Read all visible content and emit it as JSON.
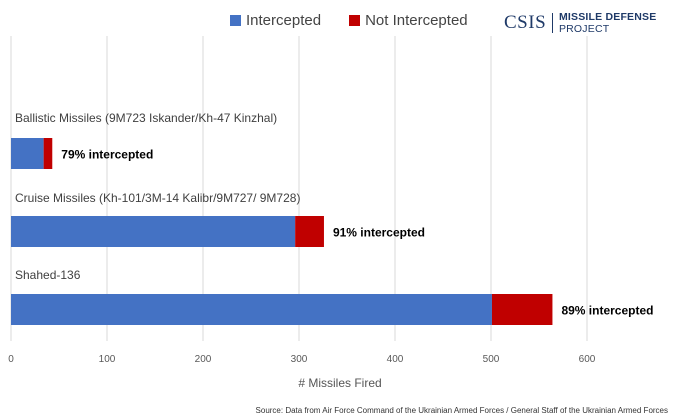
{
  "chart_data": {
    "type": "bar",
    "orientation": "horizontal",
    "stacked": true,
    "xlabel": "# Missiles Fired",
    "xlim": [
      0,
      700
    ],
    "xticks": [
      0,
      100,
      200,
      300,
      400,
      500,
      600
    ],
    "grid": true,
    "legend_position": "top",
    "series": [
      {
        "name": "Intercepted",
        "color": "#4472c4"
      },
      {
        "name": "Not Intercepted",
        "color": "#c00000"
      }
    ],
    "categories": [
      {
        "label": "Ballistic Missiles (9M723 Iskander/Kh-47 Kinzhal)",
        "intercepted": 34,
        "not_intercepted": 9,
        "annotation": "79% intercepted"
      },
      {
        "label": "Cruise Missiles (Kh-101/3M-14 Kalibr/9M727/ 9M728)",
        "intercepted": 296,
        "not_intercepted": 30,
        "annotation": "91% intercepted"
      },
      {
        "label": "Shahed-136",
        "intercepted": 501,
        "not_intercepted": 63,
        "annotation": "89% intercepted"
      }
    ]
  },
  "logo": {
    "csis": "CSIS",
    "project_bold": "MISSILE DEFENSE",
    "project_rest": " PROJECT"
  },
  "source": "Source: Data from Air Force Command of the Ukrainian Armed Forces / General Staff of the Ukrainian Armed Forces"
}
